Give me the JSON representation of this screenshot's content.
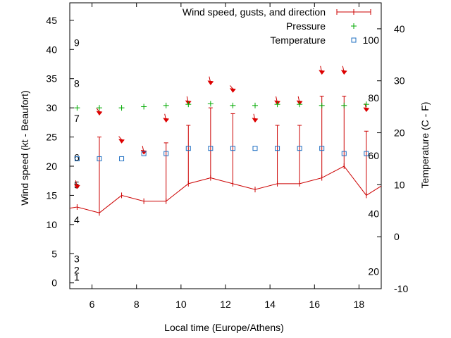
{
  "chart_data": {
    "type": "line",
    "xlabel": "Local time (Europe/Athens)",
    "ylabel_left": "Wind speed (kt - Beaufort)",
    "ylabel_right": "Temperature (C - F)",
    "xlim": [
      5,
      19
    ],
    "ylim_left": [
      -1,
      48
    ],
    "ylim_right": [
      -10,
      45
    ],
    "grid": false,
    "legend_position": "top-right",
    "x_ticks": [
      {
        "value": 6,
        "label": "6"
      },
      {
        "value": 8,
        "label": "8"
      },
      {
        "value": 10,
        "label": "10"
      },
      {
        "value": 12,
        "label": "12"
      },
      {
        "value": 14,
        "label": "14"
      },
      {
        "value": 16,
        "label": "16"
      },
      {
        "value": 18,
        "label": "18"
      }
    ],
    "y_left_ticks": [
      {
        "value": 0,
        "label": "0"
      },
      {
        "value": 5,
        "label": "5"
      },
      {
        "value": 10,
        "label": "10"
      },
      {
        "value": 15,
        "label": "15"
      },
      {
        "value": 20,
        "label": "20"
      },
      {
        "value": 25,
        "label": "25"
      },
      {
        "value": 30,
        "label": "30"
      },
      {
        "value": 35,
        "label": "35"
      },
      {
        "value": 40,
        "label": "40"
      },
      {
        "value": 45,
        "label": "45"
      }
    ],
    "y_right_ticks": [
      {
        "value": -10,
        "label": "-10"
      },
      {
        "value": 0,
        "label": "0"
      },
      {
        "value": 10,
        "label": "10"
      },
      {
        "value": 20,
        "label": "20"
      },
      {
        "value": 30,
        "label": "30"
      },
      {
        "value": 40,
        "label": "40"
      }
    ],
    "beaufort_labels": [
      {
        "value": 1,
        "label": "1"
      },
      {
        "value": 2.2,
        "label": "2"
      },
      {
        "value": 4.1,
        "label": "3"
      },
      {
        "value": 10.8,
        "label": "4"
      },
      {
        "value": 16.8,
        "label": "5"
      },
      {
        "value": 21.5,
        "label": "6"
      },
      {
        "value": 28.2,
        "label": "7"
      },
      {
        "value": 34.2,
        "label": "8"
      },
      {
        "value": 41.2,
        "label": "9"
      }
    ],
    "fahrenheit_labels": [
      {
        "value": -6.7,
        "label": "20"
      },
      {
        "value": 4.4,
        "label": "40"
      },
      {
        "value": 15.6,
        "label": "60"
      },
      {
        "value": 26.7,
        "label": "80"
      },
      {
        "value": 37.8,
        "label": "100"
      }
    ],
    "series": [
      {
        "name": "Wind speed, gusts, and direction",
        "color": "#cc0000",
        "axis": "left",
        "x": [
          5.0,
          5.33,
          6.33,
          7.33,
          8.33,
          9.33,
          10.33,
          11.33,
          12.33,
          13.33,
          14.33,
          15.33,
          16.33,
          17.33,
          18.33,
          19.0
        ],
        "values": [
          12.8,
          13,
          12,
          15,
          14,
          14,
          17,
          18,
          17,
          16,
          17,
          17,
          18,
          20,
          15,
          16.6
        ],
        "gusts": [
          null,
          null,
          25,
          null,
          null,
          24,
          27,
          30,
          29,
          null,
          27,
          27,
          32,
          32,
          26,
          null
        ],
        "direction_arrows": [
          {
            "x": 5.33,
            "y": 16.6,
            "dir": "from-N"
          },
          {
            "x": 6.33,
            "y": 29.2,
            "dir": "from-NW"
          },
          {
            "x": 7.33,
            "y": 24.4,
            "dir": "from-NW"
          },
          {
            "x": 8.33,
            "y": 22.5,
            "dir": "from-N"
          },
          {
            "x": 9.33,
            "y": 28.0,
            "dir": "from-N"
          },
          {
            "x": 10.33,
            "y": 31.0,
            "dir": "from-N"
          },
          {
            "x": 11.33,
            "y": 34.4,
            "dir": "from-N"
          },
          {
            "x": 12.33,
            "y": 33.1,
            "dir": "from-NW"
          },
          {
            "x": 13.33,
            "y": 28.0,
            "dir": "from-N"
          },
          {
            "x": 14.33,
            "y": 31.0,
            "dir": "from-N"
          },
          {
            "x": 15.33,
            "y": 31.0,
            "dir": "from-N"
          },
          {
            "x": 16.33,
            "y": 36.2,
            "dir": "from-N"
          },
          {
            "x": 17.33,
            "y": 36.2,
            "dir": "from-N"
          },
          {
            "x": 18.33,
            "y": 29.8,
            "dir": "from-N"
          }
        ]
      },
      {
        "name": "Pressure",
        "color": "#00aa00",
        "marker": "plus",
        "axis": "left",
        "x": [
          5.33,
          6.33,
          7.33,
          8.33,
          9.33,
          10.33,
          11.33,
          12.33,
          13.33,
          14.33,
          15.33,
          16.33,
          17.33,
          18.33
        ],
        "values": [
          30,
          30,
          30,
          30.2,
          30.4,
          30.6,
          30.7,
          30.4,
          30.4,
          30.6,
          30.6,
          30.4,
          30.4,
          30.6
        ]
      },
      {
        "name": "Temperature",
        "color": "#1f6fc2",
        "marker": "square",
        "axis": "right",
        "x": [
          5.33,
          6.33,
          7.33,
          8.33,
          9.33,
          10.33,
          11.33,
          12.33,
          13.33,
          14.33,
          15.33,
          16.33,
          17.33,
          18.33
        ],
        "values": [
          15,
          15,
          15,
          16,
          16,
          17,
          17,
          17,
          17,
          17,
          17,
          17,
          16,
          16
        ]
      }
    ]
  }
}
